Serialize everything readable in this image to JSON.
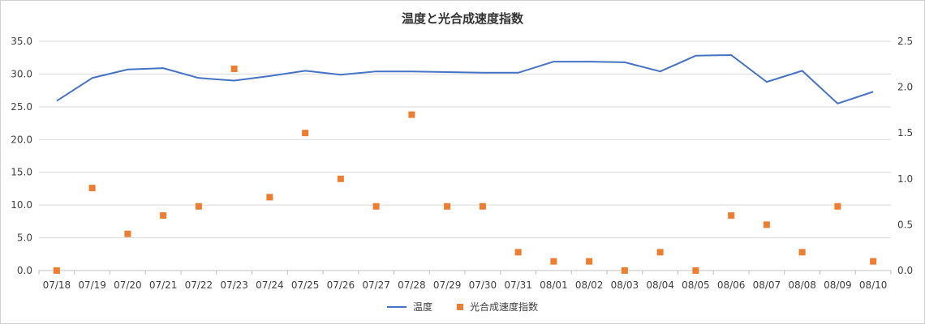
{
  "chart_data": {
    "type": "line",
    "title": "温度と光合成速度指数",
    "categories": [
      "07/18",
      "07/19",
      "07/20",
      "07/21",
      "07/22",
      "07/23",
      "07/24",
      "07/25",
      "07/26",
      "07/27",
      "07/28",
      "07/29",
      "07/30",
      "07/31",
      "08/01",
      "08/02",
      "08/03",
      "08/04",
      "08/05",
      "08/06",
      "08/07",
      "08/08",
      "08/09",
      "08/10"
    ],
    "y_left": {
      "min": 0,
      "max": 35,
      "step": 5,
      "tick_labels": [
        "0.0",
        "5.0",
        "10.0",
        "15.0",
        "20.0",
        "25.0",
        "30.0",
        "35.0"
      ]
    },
    "y_right": {
      "min": 0,
      "max": 2.5,
      "step": 0.5,
      "tick_labels": [
        "0.0",
        "0.5",
        "1.0",
        "1.5",
        "2.0",
        "2.5"
      ]
    },
    "grid": true,
    "legend_position": "bottom",
    "series": [
      {
        "name": "温度",
        "kind": "line",
        "axis": "left",
        "color": "#4472C4",
        "values": [
          25.9,
          29.4,
          30.7,
          30.9,
          29.4,
          29.0,
          29.7,
          30.5,
          29.9,
          30.4,
          30.4,
          30.3,
          30.2,
          30.2,
          31.9,
          31.9,
          31.8,
          30.4,
          32.8,
          32.9,
          28.8,
          30.5,
          25.5,
          27.3
        ]
      },
      {
        "name": "光合成速度指数",
        "kind": "scatter",
        "axis": "right",
        "color": "#ED7D31",
        "values": [
          0.0,
          0.9,
          0.4,
          0.6,
          0.7,
          2.2,
          0.8,
          1.5,
          1.0,
          0.7,
          1.7,
          0.7,
          0.7,
          0.2,
          0.1,
          0.1,
          0.0,
          0.2,
          0.0,
          0.6,
          0.5,
          0.2,
          0.7,
          0.1
        ]
      }
    ]
  }
}
